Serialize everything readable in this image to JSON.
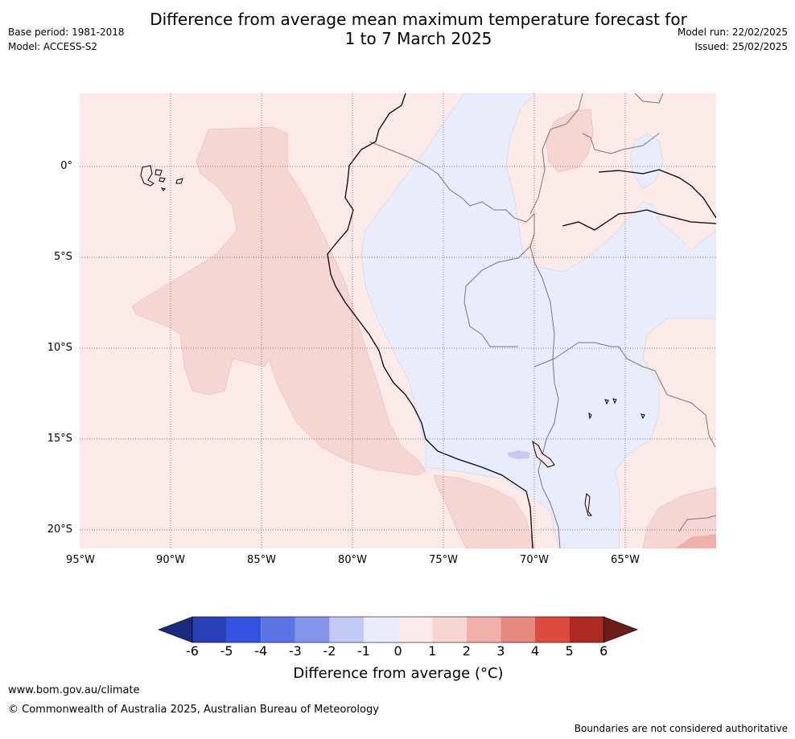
{
  "header": {
    "title_line1": "Difference from average mean maximum temperature forecast for",
    "title_line2": "1 to 7 March 2025",
    "base_period": "Base period: 1981-2018",
    "model": "Model: ACCESS-S2",
    "model_run": "Model run: 22/02/2025",
    "issued": "Issued: 25/02/2025"
  },
  "map": {
    "lat_labels": [
      "0°",
      "5°S",
      "10°S",
      "15°S",
      "20°S"
    ],
    "lon_labels": [
      "95°W",
      "90°W",
      "85°W",
      "80°W",
      "75°W",
      "70°W",
      "65°W"
    ],
    "fill_colors": {
      "neutral_warm": "#fbeae8",
      "warm_1_2": "#f5d6d3",
      "warm_2_3": "#efb0aa",
      "cool_0_1": "#e8ecfb",
      "cool_1_2": "#c3caf5"
    }
  },
  "colorbar": {
    "tick_labels": [
      "-6",
      "-5",
      "-4",
      "-3",
      "-2",
      "-1",
      "0",
      "1",
      "2",
      "3",
      "4",
      "5",
      "6"
    ],
    "colors": [
      "#1b2a7a",
      "#2a3fb5",
      "#3352e0",
      "#5c74e6",
      "#8494ea",
      "#c3caf5",
      "#e8ecfb",
      "#fbeae8",
      "#f5d6d3",
      "#efb0aa",
      "#e68a80",
      "#db4b3e",
      "#ac2a22",
      "#6e1c17"
    ],
    "label": "Difference from average (°C)"
  },
  "footer": {
    "website": "www.bom.gov.au/climate",
    "copyright": "© Commonwealth of Australia 2025, Australian Bureau of Meteorology",
    "disclaimer": "Boundaries are not considered authoritative"
  }
}
